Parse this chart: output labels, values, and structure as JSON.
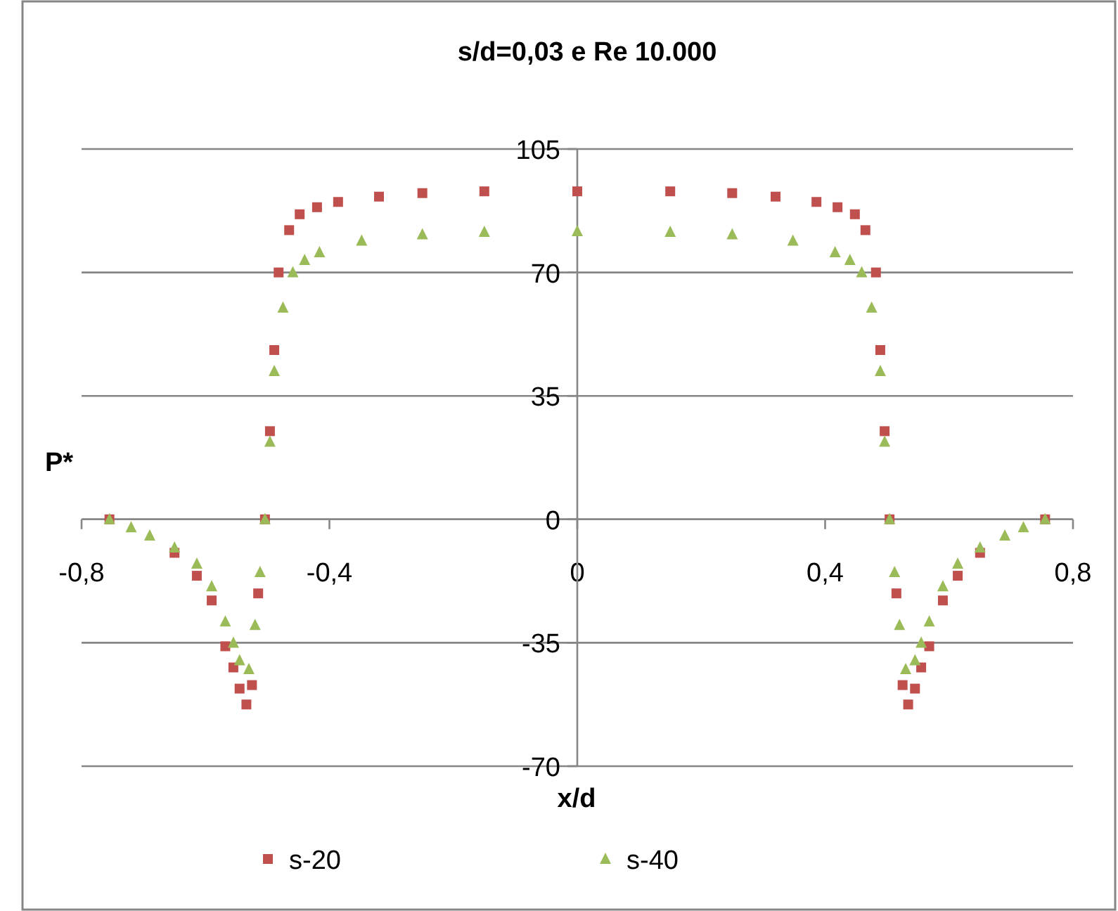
{
  "chart_data": {
    "type": "scatter",
    "title": "s/d=0,03 e Re 10.000",
    "xlabel": "x/d",
    "ylabel": "P*",
    "xlim": [
      -0.8,
      0.8
    ],
    "xticks": [
      {
        "value": -0.8,
        "label": "-0,8"
      },
      {
        "value": -0.4,
        "label": "-0,4"
      },
      0,
      {
        "value": 0.4,
        "label": "0,4"
      },
      {
        "value": 0.8,
        "label": "0,8"
      }
    ],
    "ylim": [
      -70,
      105
    ],
    "yticks": [
      -70,
      -35,
      0,
      35,
      70,
      105
    ],
    "grid": "y",
    "legend": "bottom",
    "series": [
      {
        "name": "s-20",
        "color": "#c0504d",
        "marker": "square",
        "x": [
          -0.755,
          -0.65,
          -0.614,
          -0.59,
          -0.568,
          -0.555,
          -0.545,
          -0.534,
          -0.525,
          -0.515,
          -0.504,
          -0.496,
          -0.489,
          -0.482,
          -0.465,
          -0.448,
          -0.42,
          -0.386,
          -0.32,
          -0.25,
          -0.15,
          0,
          0.15,
          0.25,
          0.32,
          0.386,
          0.42,
          0.448,
          0.465,
          0.482,
          0.489,
          0.496,
          0.504,
          0.515,
          0.525,
          0.534,
          0.545,
          0.555,
          0.568,
          0.59,
          0.614,
          0.65,
          0.755
        ],
        "values": [
          0,
          -9.5,
          -16,
          -23,
          -36,
          -42,
          -48,
          -52.5,
          -47,
          -21,
          0,
          25,
          48,
          70,
          82,
          86.5,
          88.5,
          90,
          91.5,
          92.5,
          93,
          93,
          93,
          92.5,
          91.5,
          90,
          88.5,
          86.5,
          82,
          70,
          48,
          25,
          0,
          -21,
          -47,
          -52.5,
          -48,
          -42,
          -36,
          -23,
          -16,
          -9.5,
          0
        ]
      },
      {
        "name": "s-40",
        "color": "#9bbb59",
        "marker": "triangle",
        "x": [
          -0.755,
          -0.72,
          -0.69,
          -0.65,
          -0.614,
          -0.59,
          -0.568,
          -0.555,
          -0.545,
          -0.53,
          -0.52,
          -0.512,
          -0.504,
          -0.496,
          -0.489,
          -0.475,
          -0.459,
          -0.44,
          -0.416,
          -0.348,
          -0.25,
          -0.15,
          0,
          0.15,
          0.25,
          0.348,
          0.416,
          0.44,
          0.459,
          0.475,
          0.489,
          0.496,
          0.504,
          0.512,
          0.52,
          0.53,
          0.545,
          0.555,
          0.568,
          0.59,
          0.614,
          0.65,
          0.69,
          0.72,
          0.755
        ],
        "values": [
          0,
          -2.3,
          -4.6,
          -8,
          -12.6,
          -19,
          -29,
          -35,
          -40,
          -42.5,
          -30,
          -15,
          0,
          22,
          42,
          60,
          70,
          73.5,
          75.7,
          79,
          80.8,
          81.5,
          81.7,
          81.5,
          80.8,
          79,
          75.7,
          73.5,
          70,
          60,
          42,
          22,
          0,
          -15,
          -30,
          -42.5,
          -40,
          -35,
          -29,
          -19,
          -12.6,
          -8,
          -4.6,
          -2.3,
          0
        ]
      }
    ]
  }
}
